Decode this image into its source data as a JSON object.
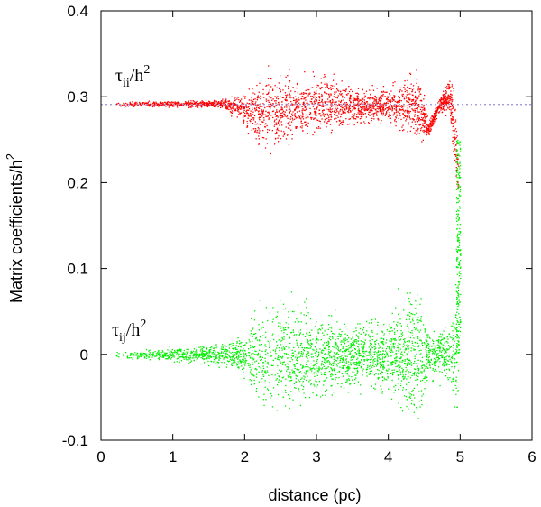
{
  "chart_data": {
    "type": "scatter",
    "xlabel": "distance (pc)",
    "ylabel": "Matrix coefficients/h",
    "ylabel_superscript": "2",
    "xlim": [
      0,
      6
    ],
    "ylim": [
      -0.1,
      0.4
    ],
    "x_ticks": [
      "0",
      "1",
      "2",
      "3",
      "4",
      "5",
      "6"
    ],
    "y_ticks": [
      "-0.1",
      "0",
      "0.1",
      "0.2",
      "0.3",
      "0.4"
    ],
    "grid": false,
    "reference_line": {
      "y": 0.291,
      "style": "dotted",
      "color": "#9b8fd6"
    },
    "annotations": [
      {
        "base": "τ",
        "sub": "ii",
        "rest": "/h",
        "sup": "2",
        "x": 0.2,
        "y": 0.318
      },
      {
        "base": "τ",
        "sub": "ij",
        "rest": "/h",
        "sup": "2",
        "x": 0.15,
        "y": 0.022
      }
    ],
    "series": [
      {
        "color": "#ff0000",
        "envelope": [
          {
            "x": 0.2,
            "center": 0.292,
            "spread": 0.002
          },
          {
            "x": 1.0,
            "center": 0.292,
            "spread": 0.003
          },
          {
            "x": 1.7,
            "center": 0.292,
            "spread": 0.004
          },
          {
            "x": 2.0,
            "center": 0.285,
            "spread": 0.015
          },
          {
            "x": 2.3,
            "center": 0.28,
            "spread": 0.035
          },
          {
            "x": 2.6,
            "center": 0.288,
            "spread": 0.03
          },
          {
            "x": 3.0,
            "center": 0.291,
            "spread": 0.028
          },
          {
            "x": 3.5,
            "center": 0.29,
            "spread": 0.018
          },
          {
            "x": 4.0,
            "center": 0.29,
            "spread": 0.014
          },
          {
            "x": 4.3,
            "center": 0.292,
            "spread": 0.028
          },
          {
            "x": 4.45,
            "center": 0.285,
            "spread": 0.03
          },
          {
            "x": 4.55,
            "center": 0.262,
            "spread": 0.008
          },
          {
            "x": 4.7,
            "center": 0.29,
            "spread": 0.006
          },
          {
            "x": 4.85,
            "center": 0.305,
            "spread": 0.02
          },
          {
            "x": 4.92,
            "center": 0.25,
            "spread": 0.04
          },
          {
            "x": 4.97,
            "center": 0.21,
            "spread": 0.03
          }
        ]
      },
      {
        "color": "#00ee00",
        "envelope": [
          {
            "x": 0.2,
            "center": 0.0,
            "spread": 0.003
          },
          {
            "x": 1.0,
            "center": 0.0,
            "spread": 0.006
          },
          {
            "x": 1.7,
            "center": 0.0,
            "spread": 0.01
          },
          {
            "x": 2.0,
            "center": 0.0,
            "spread": 0.02
          },
          {
            "x": 2.3,
            "center": 0.0,
            "spread": 0.06
          },
          {
            "x": 2.6,
            "center": 0.0,
            "spread": 0.045
          },
          {
            "x": 3.0,
            "center": 0.0,
            "spread": 0.04
          },
          {
            "x": 3.5,
            "center": 0.0,
            "spread": 0.03
          },
          {
            "x": 4.0,
            "center": 0.0,
            "spread": 0.035
          },
          {
            "x": 4.3,
            "center": 0.0,
            "spread": 0.06
          },
          {
            "x": 4.42,
            "center": 0.0,
            "spread": 0.075
          },
          {
            "x": 4.55,
            "center": 0.0,
            "spread": 0.02
          },
          {
            "x": 4.65,
            "center": 0.0,
            "spread": 0.025
          },
          {
            "x": 4.8,
            "center": 0.0,
            "spread": 0.03
          },
          {
            "x": 4.9,
            "center": 0.0,
            "spread": 0.045
          },
          {
            "x": 4.97,
            "center": 0.0,
            "spread": 0.09
          }
        ],
        "vertical_band": {
          "x": 4.97,
          "from": 0.0,
          "to": 0.25
        }
      }
    ]
  }
}
